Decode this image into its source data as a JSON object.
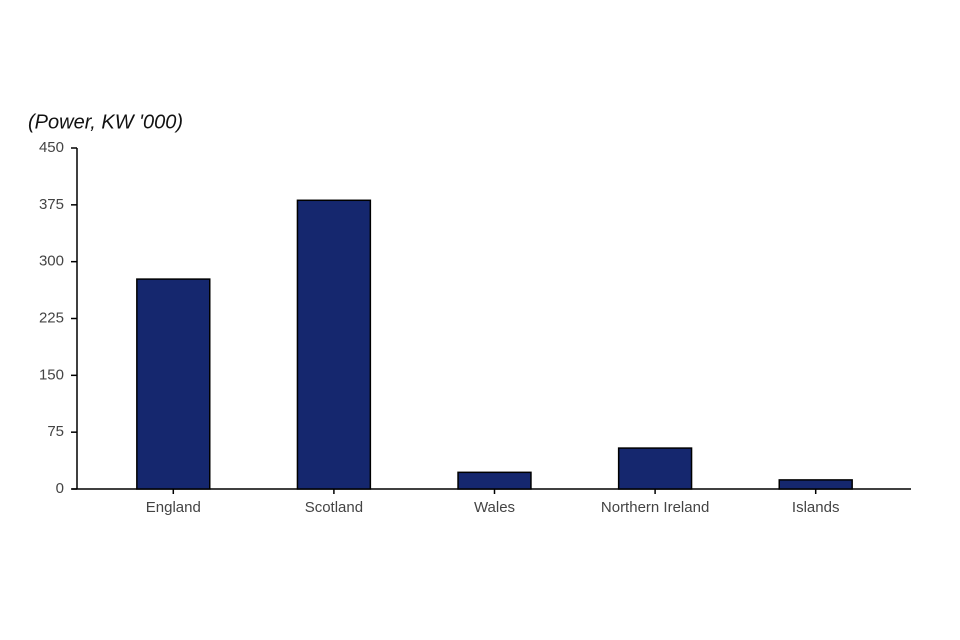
{
  "chart_data": {
    "type": "bar",
    "ylabel": "(Power, KW '000)",
    "categories": [
      "England",
      "Scotland",
      "Wales",
      "Northern Ireland",
      "Islands"
    ],
    "values": [
      277,
      381,
      22,
      54,
      12
    ],
    "color": "#15276e",
    "ylim": [
      0,
      450
    ],
    "yticks": [
      0,
      75,
      150,
      225,
      300,
      375,
      450
    ],
    "grid": false
  }
}
